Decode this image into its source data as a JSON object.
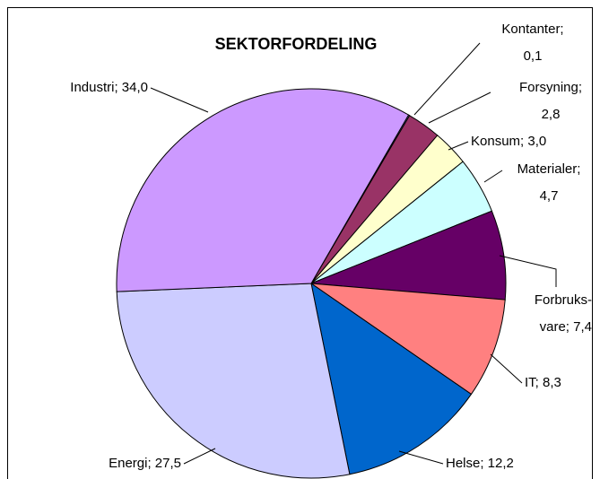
{
  "chart_data": {
    "type": "pie",
    "title": "SEKTORFORDELING",
    "values": [
      0.1,
      2.8,
      3.0,
      4.7,
      7.4,
      8.3,
      12.2,
      27.5,
      34.0
    ],
    "value_labels": [
      "Kontanter;\n0,1",
      "Forsyning;\n2,8",
      "Konsum; 3,0",
      "Materialer;\n4,7",
      "Forbruks-\nvare; 7,4",
      "IT; 8,3",
      "Helse; 12,2",
      "Energi; 27,5",
      "Industri; 34,0"
    ],
    "colors": [
      "#9999ff",
      "#993366",
      "#ffffcc",
      "#ccffff",
      "#660066",
      "#ff8080",
      "#0066cc",
      "#ccccff",
      "#cc99ff"
    ]
  }
}
